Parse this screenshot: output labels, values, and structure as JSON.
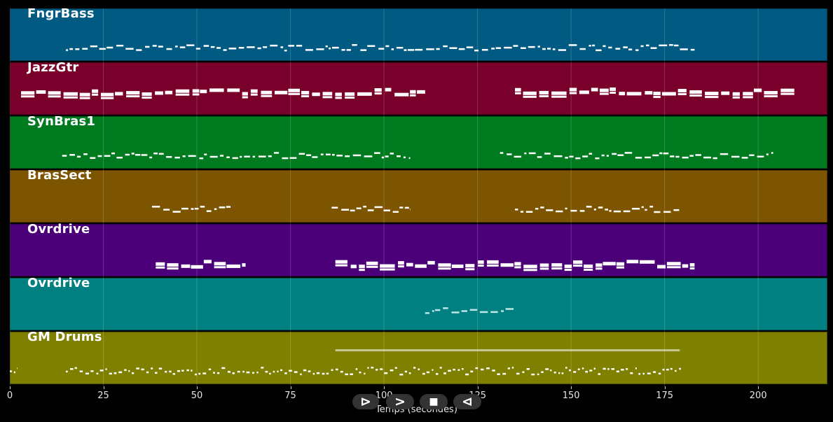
{
  "tracks": [
    {
      "name": "FngrBass",
      "color": "#005a82"
    },
    {
      "name": "JazzGtr",
      "color": "#7a002c"
    },
    {
      "name": "SynBras1",
      "color": "#007a1f"
    },
    {
      "name": "BrasSect",
      "color": "#7d5400"
    },
    {
      "name": "Ovrdrive",
      "color": "#4b007a"
    },
    {
      "name": "Ovrdrive",
      "color": "#008080"
    },
    {
      "name": "GM Drums",
      "color": "#808000"
    }
  ],
  "axis": {
    "xlabel": "Temps (secondes)",
    "xlim": [
      0,
      218.5
    ],
    "ticks": [
      0,
      25,
      50,
      75,
      100,
      125,
      150,
      175,
      200
    ],
    "tick_labels": [
      "0",
      "25",
      "50",
      "75",
      "100",
      "125",
      "150",
      "175",
      "200"
    ]
  },
  "note_segments": [
    [
      {
        "start": 15,
        "end": 183
      }
    ],
    [
      {
        "start": 3,
        "end": 111
      },
      {
        "start": 135,
        "end": 210
      }
    ],
    [
      {
        "start": 14,
        "end": 107
      },
      {
        "start": 131,
        "end": 204
      }
    ],
    [
      {
        "start": 38,
        "end": 59
      },
      {
        "start": 86,
        "end": 107
      },
      {
        "start": 135,
        "end": 179
      }
    ],
    [
      {
        "start": 39,
        "end": 63
      },
      {
        "start": 87,
        "end": 183
      }
    ],
    [
      {
        "start": 111,
        "end": 135
      }
    ],
    [
      {
        "start": 0,
        "end": 2
      },
      {
        "start": 15,
        "end": 180
      }
    ]
  ],
  "transport": {
    "play": "⊳",
    "forward": ">",
    "stop": "■",
    "back": "⊲"
  }
}
